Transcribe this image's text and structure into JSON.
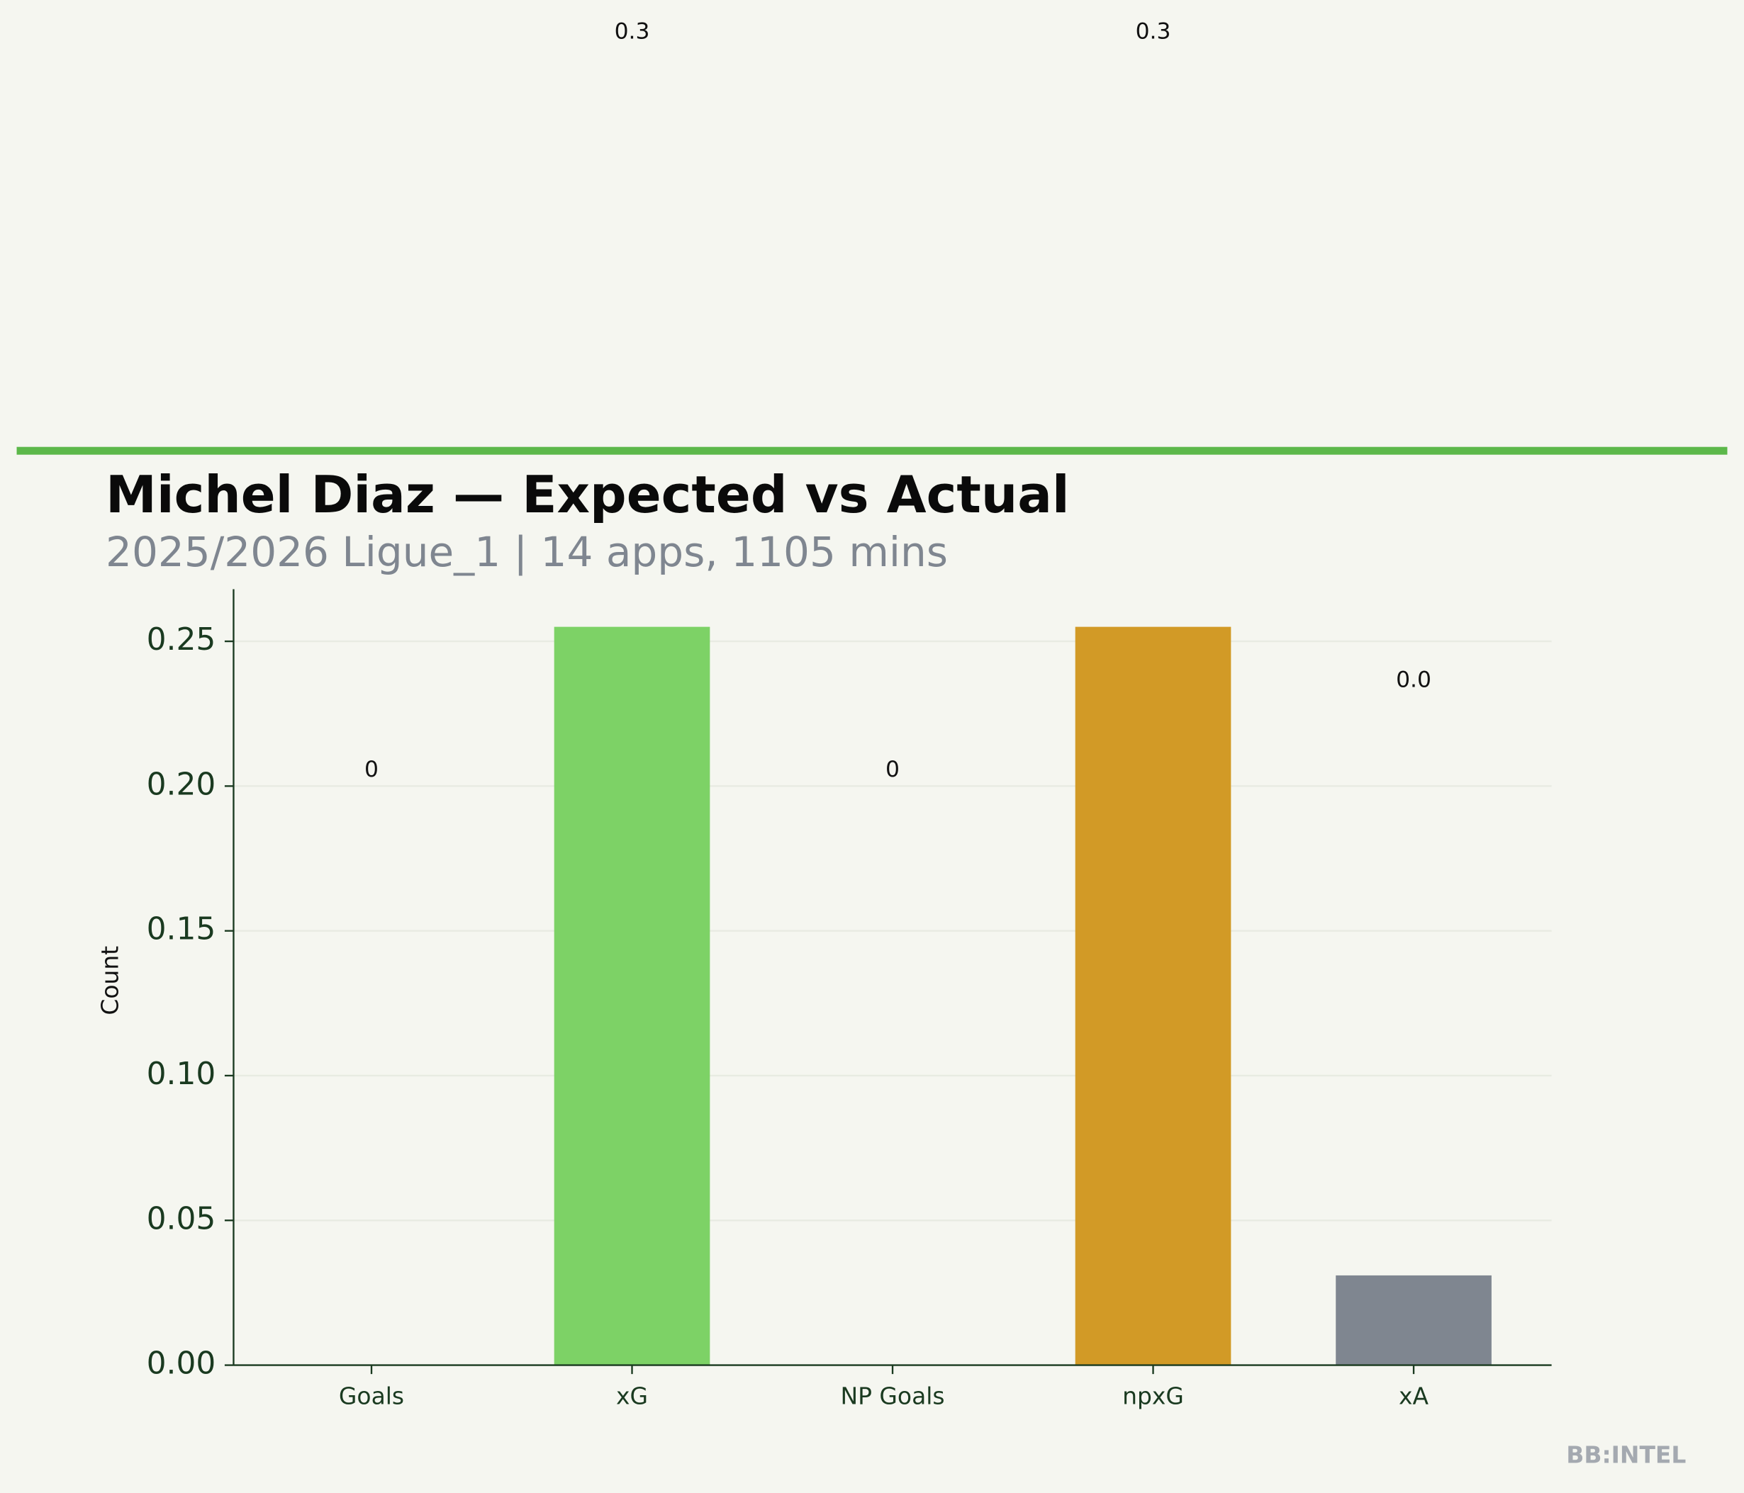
{
  "chart_data": {
    "type": "bar",
    "title": "Michel Diaz — Expected vs Actual",
    "subtitle": "2025/2026 Ligue_1 | 14 apps, 1105 mins",
    "y_label": "Count",
    "watermark": "BB:INTEL",
    "categories": [
      "Goals",
      "xG",
      "NP Goals",
      "npxG",
      "xA"
    ],
    "values": [
      0,
      0.255,
      0,
      0.255,
      0.031
    ],
    "value_labels": [
      "0",
      "0.3",
      "0",
      "0.3",
      "0.0"
    ],
    "colors": [
      "#7dd266",
      "#7dd266",
      "#d29a26",
      "#d29a26",
      "#7f8690"
    ],
    "ylim": [
      0,
      0.268
    ],
    "yticks": [
      {
        "value": 0,
        "label": "0.00"
      },
      0.05,
      {
        "value": 0.1,
        "label": "0.10"
      },
      0.15,
      {
        "value": 0.2,
        "label": "0.20"
      },
      0.25
    ],
    "grid": true
  }
}
